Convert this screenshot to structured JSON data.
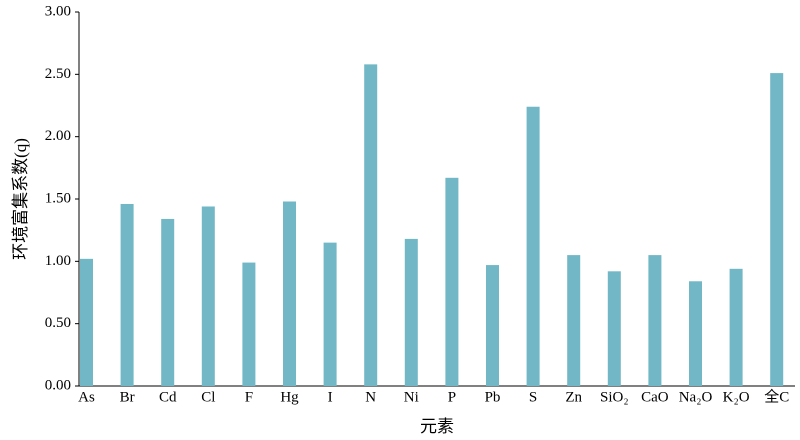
{
  "chart_data": {
    "type": "bar",
    "y_label": "环境富集系数(q)",
    "x_label": "元素",
    "categories": [
      "As",
      "Br",
      "Cd",
      "Cl",
      "F",
      "Hg",
      "I",
      "N",
      "Ni",
      "P",
      "Pb",
      "S",
      "Zn",
      "SiO₂",
      "CaO",
      "Na₂O",
      "K₂O",
      "全C"
    ],
    "values": [
      1.02,
      1.46,
      1.34,
      1.44,
      0.99,
      1.48,
      1.15,
      2.58,
      1.18,
      1.67,
      0.97,
      2.24,
      1.05,
      0.92,
      1.05,
      0.84,
      0.94,
      2.51
    ],
    "color": "#72b7c6",
    "ylim": [
      0,
      3
    ],
    "yticks": [
      {
        "value": 0,
        "label": "0.00"
      },
      {
        "value": 0.5,
        "label": "0.50"
      },
      {
        "value": 1,
        "label": "1.00"
      },
      {
        "value": 1.5,
        "label": "1.50"
      },
      {
        "value": 2,
        "label": "2.00"
      },
      {
        "value": 2.5,
        "label": "2.50"
      },
      {
        "value": 3,
        "label": "3.00"
      }
    ],
    "grid": false
  }
}
